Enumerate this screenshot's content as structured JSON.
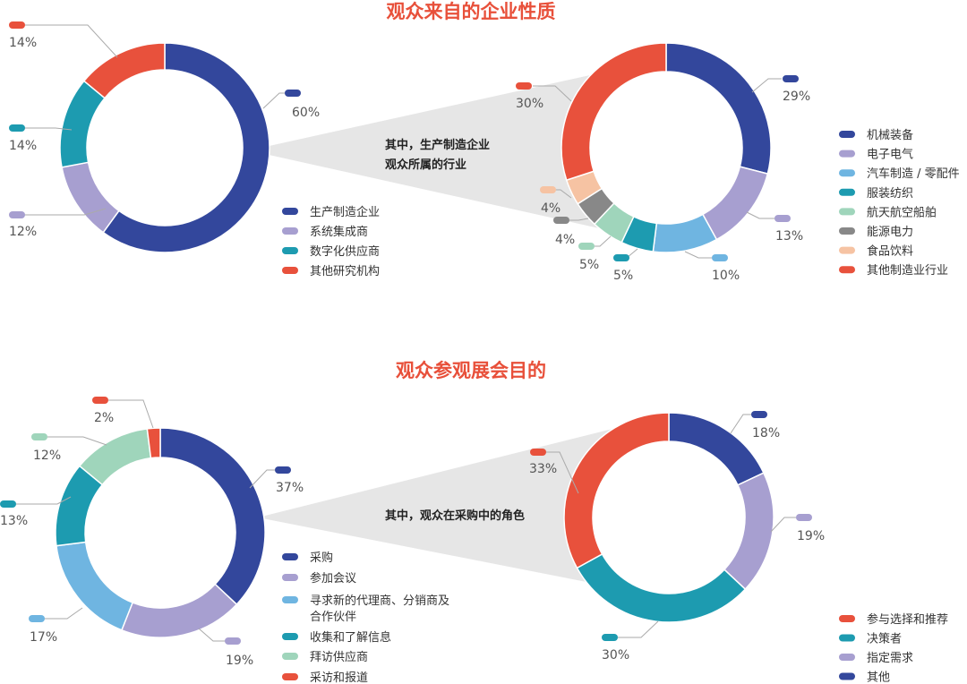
{
  "colors": {
    "title": "#e8503a",
    "navy": "#33479c",
    "lavender": "#a79fd0",
    "sky": "#6fb5e1",
    "teal": "#1d9bb0",
    "mint": "#9fd5bb",
    "gray": "#888888",
    "peach": "#f6c3a3",
    "red": "#e8513c",
    "text": "#333333",
    "label": "#555555",
    "callout": "#e6e6e6"
  },
  "chart_data": [
    {
      "type": "donut",
      "title": "观众来自的企业性质",
      "series": [
        {
          "label": "生产制造企业",
          "value": 60,
          "value_label": "60%",
          "color": "#33479c"
        },
        {
          "label": "系统集成商",
          "value": 12,
          "value_label": "12%",
          "color": "#a79fd0"
        },
        {
          "label": "数字化供应商",
          "value": 14,
          "value_label": "14%",
          "color": "#1d9bb0"
        },
        {
          "label": "其他研究机构",
          "value": 14,
          "value_label": "14%",
          "color": "#e8513c"
        }
      ],
      "legend_position": "bottom-right"
    },
    {
      "type": "donut",
      "title": "其中，生产制造企业观众所属的行业",
      "title_lines": [
        "其中，生产制造企业",
        "观众所属的行业"
      ],
      "series": [
        {
          "label": "机械装备",
          "value": 29,
          "value_label": "29%",
          "color": "#33479c"
        },
        {
          "label": "电子电气",
          "value": 13,
          "value_label": "13%",
          "color": "#a79fd0"
        },
        {
          "label": "汽车制造 / 零配件",
          "value": 10,
          "value_label": "10%",
          "color": "#6fb5e1"
        },
        {
          "label": "服装纺织",
          "value": 5,
          "value_label": "5%",
          "color": "#1d9bb0"
        },
        {
          "label": "航天航空船舶",
          "value": 5,
          "value_label": "5%",
          "color": "#9fd5bb"
        },
        {
          "label": "能源电力",
          "value": 4,
          "value_label": "4%",
          "color": "#888888"
        },
        {
          "label": "食品饮料",
          "value": 4,
          "value_label": "4%",
          "color": "#f6c3a3"
        },
        {
          "label": "其他制造业行业",
          "value": 30,
          "value_label": "30%",
          "color": "#e8513c"
        }
      ],
      "legend_position": "right"
    },
    {
      "type": "donut",
      "title": "观众参观展会目的",
      "series": [
        {
          "label": "采购",
          "value": 37,
          "value_label": "37%",
          "color": "#33479c"
        },
        {
          "label": "参加会议",
          "value": 19,
          "value_label": "19%",
          "color": "#a79fd0"
        },
        {
          "label": "寻求新的代理商、分销商及合作伙伴",
          "label_lines": [
            "寻求新的代理商、分销商及",
            "合作伙伴"
          ],
          "value": 17,
          "value_label": "17%",
          "color": "#6fb5e1"
        },
        {
          "label": "收集和了解信息",
          "value": 13,
          "value_label": "13%",
          "color": "#1d9bb0"
        },
        {
          "label": "拜访供应商",
          "value": 12,
          "value_label": "12%",
          "color": "#9fd5bb"
        },
        {
          "label": "采访和报道",
          "value": 2,
          "value_label": "2%",
          "color": "#e8513c"
        }
      ],
      "legend_position": "bottom-right"
    },
    {
      "type": "donut",
      "title": "其中，观众在采购中的角色",
      "series": [
        {
          "label": "其他",
          "value": 18,
          "value_label": "18%",
          "color": "#33479c"
        },
        {
          "label": "指定需求",
          "value": 19,
          "value_label": "19%",
          "color": "#a79fd0"
        },
        {
          "label": "决策者",
          "value": 30,
          "value_label": "30%",
          "color": "#1d9bb0"
        },
        {
          "label": "参与选择和推荐",
          "value": 33,
          "value_label": "33%",
          "color": "#e8513c"
        }
      ],
      "legend_order": [
        "参与选择和推荐",
        "决策者",
        "指定需求",
        "其他"
      ],
      "legend_position": "bottom-right"
    }
  ]
}
